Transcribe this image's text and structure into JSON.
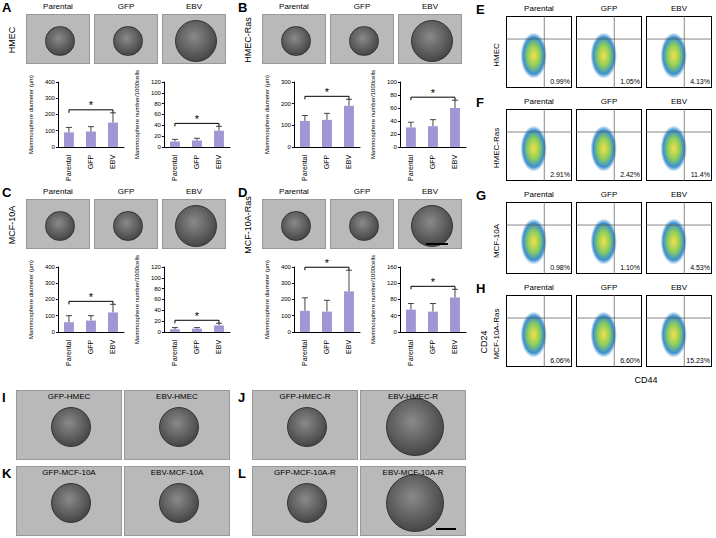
{
  "chart_data": [
    {
      "type": "bar",
      "y_label": "Mammosphere diameter (μm)",
      "categories": [
        "Parental",
        "GFP",
        "EBV"
      ],
      "values": [
        90,
        95,
        150
      ],
      "errors": [
        30,
        30,
        60
      ],
      "color": "#9f97d4",
      "ylim": [
        0,
        400
      ],
      "yticks": [
        0,
        100,
        200,
        300,
        400
      ],
      "grid": false,
      "annotations": [
        "*"
      ]
    },
    {
      "type": "bar",
      "y_label": "Mammosphere number/1000cells",
      "categories": [
        "Parental",
        "GFP",
        "EBV"
      ],
      "values": [
        10,
        12,
        30
      ],
      "errors": [
        4,
        4,
        8
      ],
      "color": "#9f97d4",
      "ylim": [
        0,
        120
      ],
      "yticks": [
        0,
        20,
        40,
        60,
        80,
        100,
        120
      ],
      "grid": false,
      "annotations": [
        "*"
      ]
    },
    {
      "type": "bar",
      "y_label": "Mammosphere diameter (μm)",
      "categories": [
        "Parental",
        "GFP",
        "EBV"
      ],
      "values": [
        120,
        125,
        190
      ],
      "errors": [
        25,
        30,
        30
      ],
      "color": "#9f97d4",
      "ylim": [
        0,
        300
      ],
      "yticks": [
        0,
        100,
        200,
        300
      ],
      "grid": false,
      "annotations": [
        "*"
      ]
    },
    {
      "type": "bar",
      "y_label": "Mammosphere number/1000cells",
      "categories": [
        "Parental",
        "GFP",
        "EBV"
      ],
      "values": [
        30,
        32,
        60
      ],
      "errors": [
        8,
        10,
        12
      ],
      "color": "#9f97d4",
      "ylim": [
        0,
        100
      ],
      "yticks": [
        0,
        20,
        40,
        60,
        80,
        100
      ],
      "grid": false,
      "annotations": [
        "*"
      ]
    },
    {
      "type": "bar",
      "y_label": "Mammosphere diameter (μm)",
      "categories": [
        "Parental",
        "GFP",
        "EBV"
      ],
      "values": [
        60,
        70,
        120
      ],
      "errors": [
        40,
        30,
        50
      ],
      "color": "#9f97d4",
      "ylim": [
        0,
        400
      ],
      "yticks": [
        0,
        100,
        200,
        300,
        400
      ],
      "grid": false,
      "annotations": [
        "*"
      ]
    },
    {
      "type": "bar",
      "y_label": "Mammosphere number/1000cells",
      "categories": [
        "Parental",
        "GFP",
        "EBV"
      ],
      "values": [
        5,
        6,
        12
      ],
      "errors": [
        3,
        2,
        4
      ],
      "color": "#9f97d4",
      "ylim": [
        0,
        120
      ],
      "yticks": [
        0,
        20,
        40,
        60,
        80,
        100,
        120
      ],
      "grid": false,
      "annotations": [
        "*"
      ]
    },
    {
      "type": "bar",
      "y_label": "Mammosphere diameter (μm)",
      "categories": [
        "Parental",
        "GFP",
        "EBV"
      ],
      "values": [
        130,
        125,
        250
      ],
      "errors": [
        80,
        70,
        130
      ],
      "color": "#9f97d4",
      "ylim": [
        0,
        400
      ],
      "yticks": [
        0,
        100,
        200,
        300,
        400
      ],
      "grid": false,
      "annotations": [
        "*"
      ]
    },
    {
      "type": "bar",
      "y_label": "Mammosphere number/1000cells",
      "categories": [
        "Parental",
        "GFP",
        "EBV"
      ],
      "values": [
        55,
        50,
        85
      ],
      "errors": [
        15,
        20,
        20
      ],
      "color": "#9f97d4",
      "ylim": [
        0,
        160
      ],
      "yticks": [
        0,
        40,
        80,
        120,
        160
      ],
      "grid": false,
      "annotations": [
        "*"
      ]
    }
  ],
  "figure": {
    "bar_panels": [
      {
        "letter": "A",
        "cell_line": "HMEC",
        "image_labels": [
          "Parental",
          "GFP",
          "EBV"
        ]
      },
      {
        "letter": "B",
        "cell_line": "HMEC-Ras",
        "image_labels": [
          "Parental",
          "GFP",
          "EBV"
        ]
      },
      {
        "letter": "C",
        "cell_line": "MCF-10A",
        "image_labels": [
          "Parental",
          "GFP",
          "EBV"
        ]
      },
      {
        "letter": "D",
        "cell_line": "MCF-10A-Ras",
        "image_labels": [
          "Parental",
          "GFP",
          "EBV"
        ]
      }
    ],
    "flow": {
      "x_label": "CD44",
      "y_label": "CD24",
      "rows": [
        {
          "letter": "E",
          "cell_line": "HMEC",
          "samples": [
            {
              "label": "Parental",
              "percent": "0.99%"
            },
            {
              "label": "GFP",
              "percent": "1.05%"
            },
            {
              "label": "EBV",
              "percent": "4.13%"
            }
          ]
        },
        {
          "letter": "F",
          "cell_line": "HMEC-Ras",
          "samples": [
            {
              "label": "Parental",
              "percent": "2.91%"
            },
            {
              "label": "GFP",
              "percent": "2.42%"
            },
            {
              "label": "EBV",
              "percent": "11.4%"
            }
          ]
        },
        {
          "letter": "G",
          "cell_line": "MCF-10A",
          "samples": [
            {
              "label": "Parental",
              "percent": "0.98%"
            },
            {
              "label": "GFP",
              "percent": "1.10%"
            },
            {
              "label": "EBV",
              "percent": "4.53%"
            }
          ]
        },
        {
          "letter": "H",
          "cell_line": "MCF-10A-Ras",
          "samples": [
            {
              "label": "Parental",
              "percent": "6.06%"
            },
            {
              "label": "GFP",
              "percent": "6.60%"
            },
            {
              "label": "EBV",
              "percent": "15.23%"
            }
          ]
        }
      ]
    },
    "sphere_panels": [
      {
        "letter": "I",
        "labels": [
          "GFP-HMEC",
          "EBV-HMEC"
        ]
      },
      {
        "letter": "J",
        "labels": [
          "GFP-HMEC-R",
          "EBV-HMEC-R"
        ]
      },
      {
        "letter": "K",
        "labels": [
          "GFP-MCF-10A",
          "EBV-MCF-10A"
        ]
      },
      {
        "letter": "L",
        "labels": [
          "GFP-MCF-10A-R",
          "EBV-MCF-10A-R"
        ]
      }
    ]
  }
}
